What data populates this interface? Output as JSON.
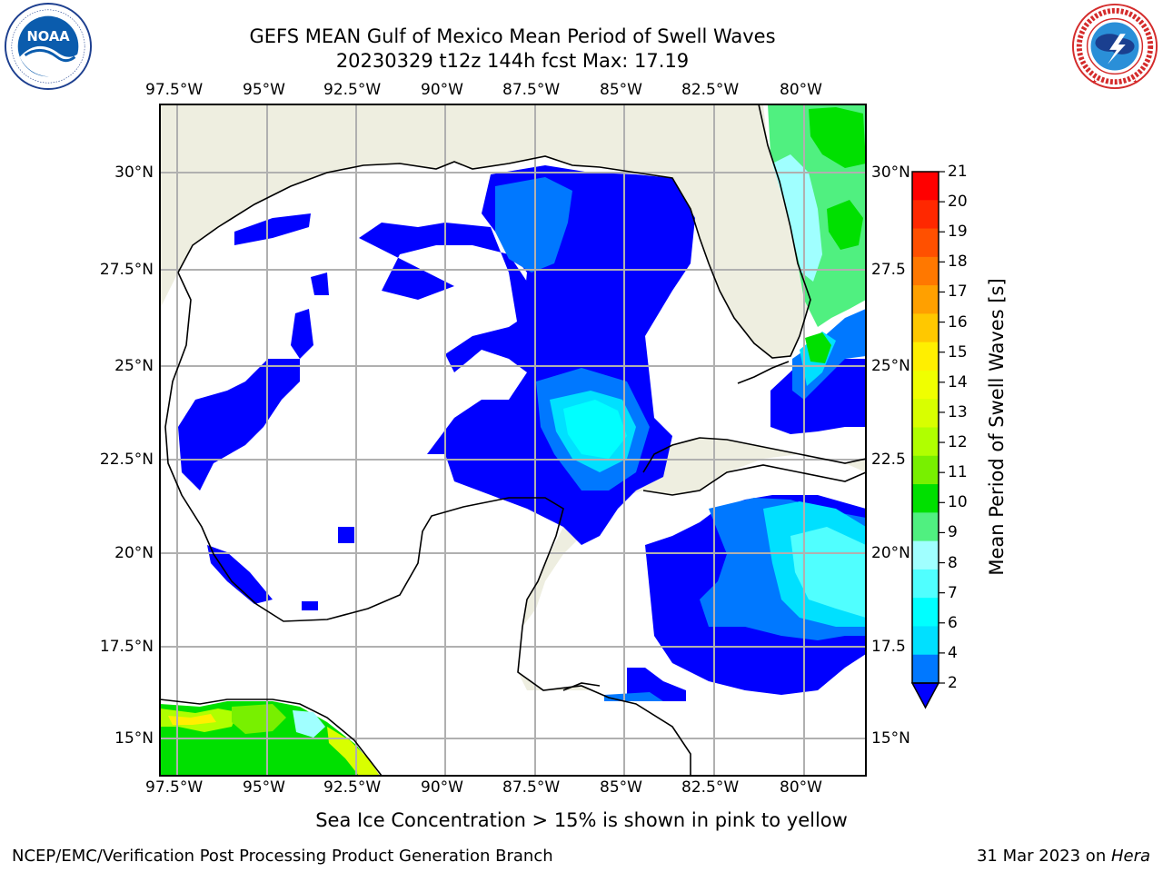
{
  "header": {
    "title_line1": "GEFS MEAN Gulf of Mexico Mean Period of Swell Waves",
    "title_line2": "20230329 t12z 144h fcst   Max: 17.19"
  },
  "logos": {
    "left": {
      "name": "noaa-logo",
      "text": "NOAA",
      "ring_text": "NATIONAL OCEANIC AND ATMOSPHERIC ADMINISTRATION · U.S. DEPARTMENT OF COMMERCE"
    },
    "right": {
      "name": "nws-logo",
      "ring_text": "NATIONAL WEATHER SERVICE"
    }
  },
  "map": {
    "lon_labels": [
      "97.5°W",
      "95°W",
      "92.5°W",
      "90°W",
      "87.5°W",
      "85°W",
      "82.5°W",
      "80°W"
    ],
    "lat_labels_left": [
      "30°N",
      "27.5°N",
      "25°N",
      "22.5°N",
      "20°N",
      "17.5°N",
      "15°N"
    ],
    "lat_labels_right": [
      "30°N",
      "27.5",
      "25°N",
      "22.5",
      "20°N",
      "17.5",
      "15°N"
    ],
    "colors": {
      "land": "#eeeee0",
      "ocean": "#ffffff",
      "grid": "#b0b0b0",
      "coast": "#000000"
    }
  },
  "colorbar": {
    "label": "Mean Period of Swell Waves [s]",
    "ticks": [
      "21",
      "20",
      "19",
      "18",
      "17",
      "16",
      "15",
      "14",
      "13",
      "12",
      "11",
      "10",
      "9",
      "8",
      "7",
      "6",
      "4",
      "2"
    ],
    "colors_top_to_bottom": [
      "#ff0000",
      "#ff2800",
      "#ff5000",
      "#ff7800",
      "#ffa000",
      "#ffc800",
      "#ffef00",
      "#f0ff00",
      "#d8ff00",
      "#b0ff00",
      "#78f000",
      "#00e000",
      "#50f080",
      "#a0ffff",
      "#50ffff",
      "#00ffff",
      "#00e0ff",
      "#0078ff"
    ],
    "extend_color": "#0000ff"
  },
  "notes": {
    "sea_ice": "Sea Ice Concentration > 15% is shown in pink to yellow"
  },
  "footer": {
    "left": "NCEP/EMC/Verification Post Processing Product Generation Branch",
    "right_prefix": "31 Mar 2023 on ",
    "right_host": "Hera"
  }
}
